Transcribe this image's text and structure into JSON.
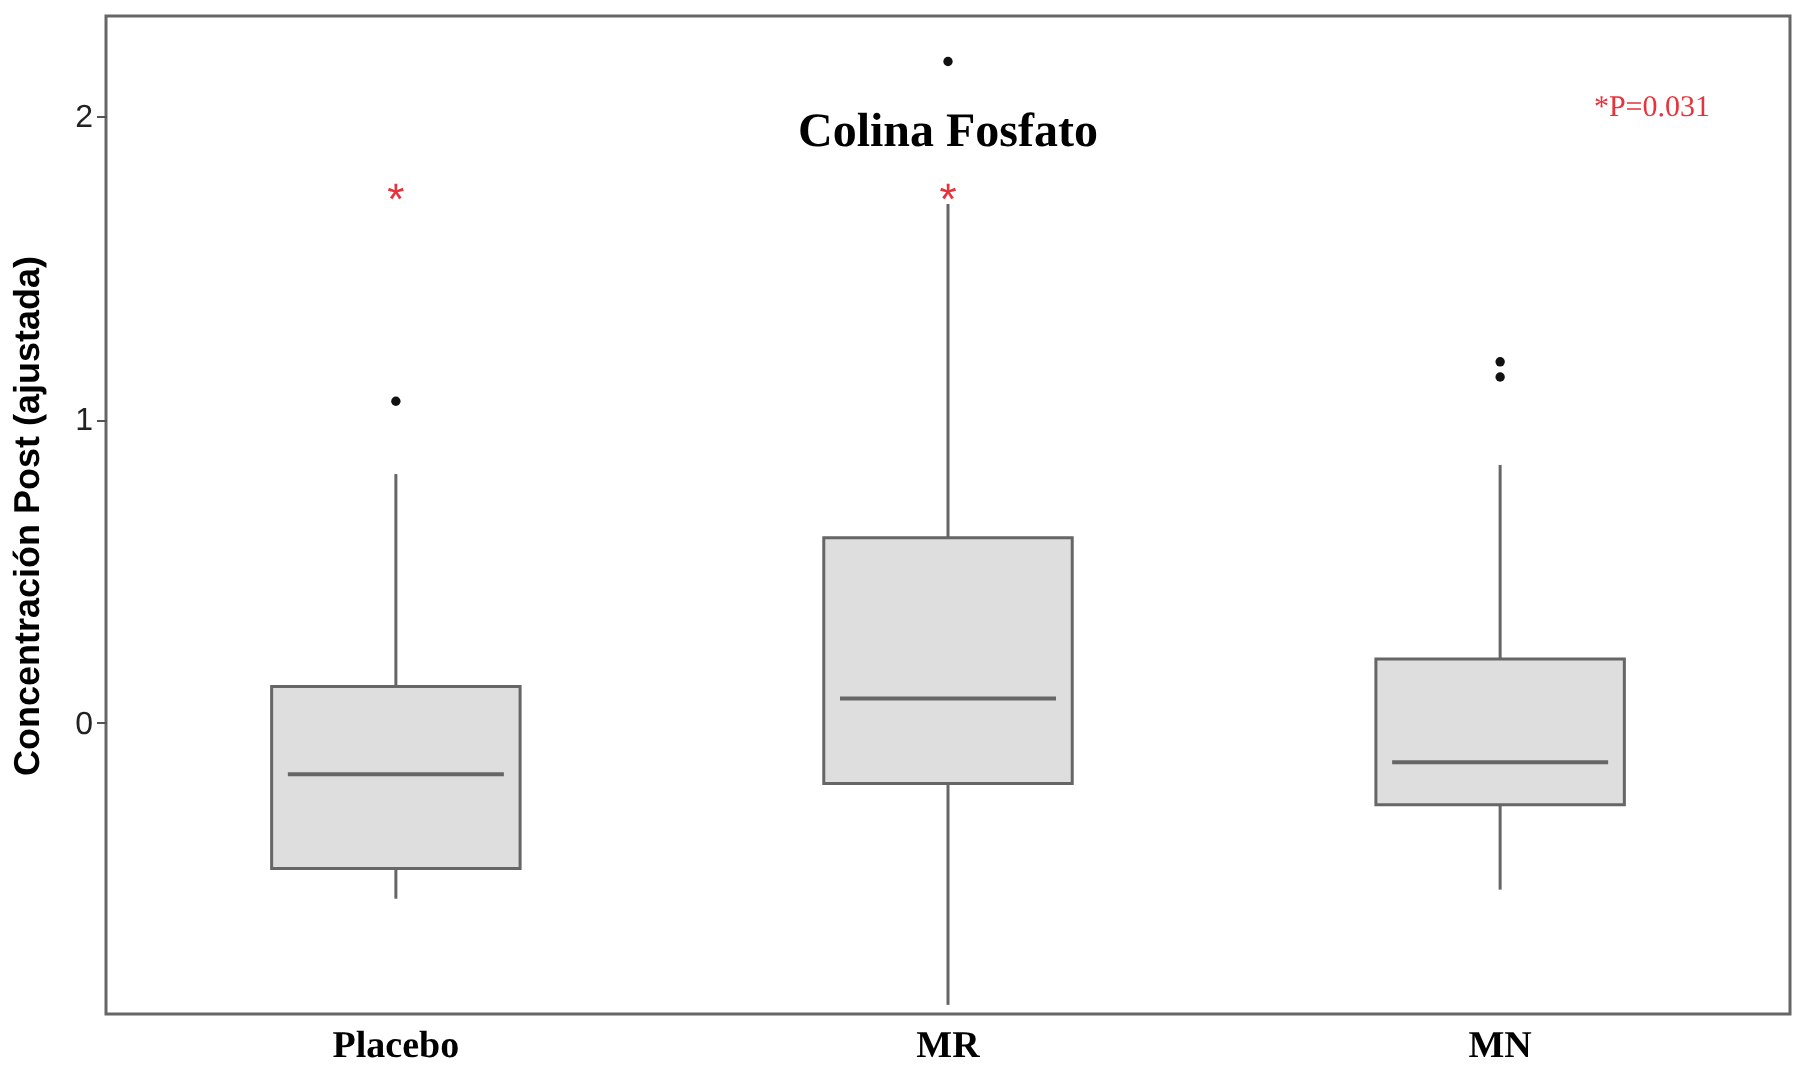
{
  "chart_data": {
    "type": "box",
    "title": "Colina Fosfato",
    "ylabel": "Concentración Post (ajustada)",
    "categories": [
      "Placebo",
      "MR",
      "MN"
    ],
    "boxes": [
      {
        "low": -0.58,
        "q1": -0.48,
        "median": -0.17,
        "q3": 0.12,
        "high": 0.82,
        "outliers": [
          1.06
        ]
      },
      {
        "low": -0.93,
        "q1": -0.2,
        "median": 0.08,
        "q3": 0.61,
        "high": 1.71,
        "outliers": [
          2.18
        ]
      },
      {
        "low": -0.55,
        "q1": -0.27,
        "median": -0.13,
        "q3": 0.21,
        "high": 0.85,
        "outliers": [
          1.19,
          1.14
        ]
      }
    ],
    "color": "#dedede",
    "ylim": [
      -0.96,
      2.33
    ],
    "yticks": [
      0,
      1,
      2
    ],
    "grid": false,
    "annotations": [
      "*",
      "*",
      "*P=0.031"
    ]
  }
}
